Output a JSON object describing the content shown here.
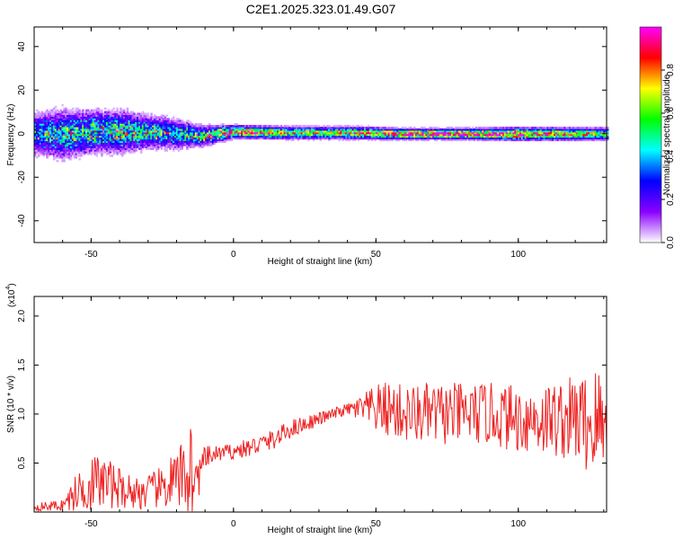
{
  "title": "C2E1.2025.323.01.49.G07",
  "chart_data": [
    {
      "type": "heatmap",
      "xlabel": "Height of straight line (km)",
      "ylabel": "Frequency (Hz)",
      "xlim": [
        -70,
        131
      ],
      "ylim": [
        -50,
        49
      ],
      "xticks": [
        -50,
        0,
        50,
        100
      ],
      "yticks": [
        -40,
        -20,
        0,
        20,
        40
      ],
      "colorbar": {
        "label": "Normalized spectral amplitude",
        "range": [
          0,
          1
        ],
        "ticks": [
          0.0,
          0.2,
          0.4,
          0.6,
          0.8
        ],
        "tick_labels": [
          "0.0",
          "0.2",
          "0.4",
          "0.6",
          "0.8"
        ],
        "colormap": [
          "#ffffff",
          "#8a00ff",
          "#0000ff",
          "#00ffff",
          "#00ff00",
          "#ffff00",
          "#ff0000",
          "#ff00ff"
        ]
      },
      "ridge": {
        "x": [
          -70,
          -60,
          -50,
          -40,
          -30,
          -20,
          -12,
          0,
          20,
          40,
          60,
          80,
          100,
          131
        ],
        "center_freq": [
          0,
          0,
          1,
          1,
          1,
          0,
          -1,
          1,
          0.5,
          0.5,
          0,
          0,
          0,
          0
        ],
        "spread_hz": [
          10,
          12,
          10,
          10,
          8,
          7,
          5,
          3,
          3,
          3,
          2.5,
          2.5,
          3,
          3
        ],
        "peak_amplitude": [
          0.4,
          0.45,
          0.5,
          0.55,
          0.5,
          0.45,
          0.55,
          0.9,
          0.65,
          0.7,
          0.95,
          0.95,
          0.9,
          0.6
        ]
      }
    },
    {
      "type": "line",
      "xlabel": "Height of straight line (km)",
      "ylabel": "SNR (10 * v/v)",
      "y_multiplier": "(x10",
      "y_multiplier_exp": "4",
      "xlim": [
        -70,
        131
      ],
      "ylim": [
        0,
        2.2
      ],
      "xticks": [
        -50,
        0,
        50,
        100
      ],
      "yticks": [
        0.5,
        1.0,
        1.5,
        2.0
      ],
      "ytick_labels": [
        "0.5",
        "1.0",
        "1.5",
        "2.0"
      ],
      "series": [
        {
          "color": "#ee2222",
          "envelope_x": [
            -70,
            -60,
            -55,
            -50,
            -45,
            -40,
            -35,
            -30,
            -25,
            -22,
            -20,
            -17,
            -15,
            -13,
            -10,
            -5,
            0,
            5,
            10,
            15,
            20,
            25,
            30,
            35,
            40,
            45,
            50,
            55,
            60,
            70,
            80,
            90,
            100,
            110,
            120,
            125,
            128,
            131
          ],
          "envelope_mean": [
            0.05,
            0.07,
            0.2,
            0.3,
            0.3,
            0.25,
            0.2,
            0.2,
            0.25,
            0.3,
            0.3,
            0.4,
            0.45,
            0.3,
            0.55,
            0.6,
            0.62,
            0.65,
            0.7,
            0.75,
            0.85,
            0.9,
            0.95,
            1.0,
            1.05,
            1.05,
            1.05,
            1.05,
            1.0,
            1.0,
            1.0,
            1.0,
            0.95,
            0.95,
            0.95,
            0.9,
            0.9,
            0.9
          ],
          "envelope_spread": [
            0.04,
            0.06,
            0.2,
            0.3,
            0.28,
            0.2,
            0.18,
            0.18,
            0.22,
            0.3,
            0.3,
            0.4,
            0.6,
            0.25,
            0.12,
            0.08,
            0.08,
            0.1,
            0.1,
            0.1,
            0.1,
            0.08,
            0.07,
            0.06,
            0.06,
            0.15,
            0.25,
            0.3,
            0.3,
            0.32,
            0.32,
            0.32,
            0.35,
            0.38,
            0.45,
            0.55,
            0.65,
            0.3
          ]
        }
      ]
    }
  ]
}
